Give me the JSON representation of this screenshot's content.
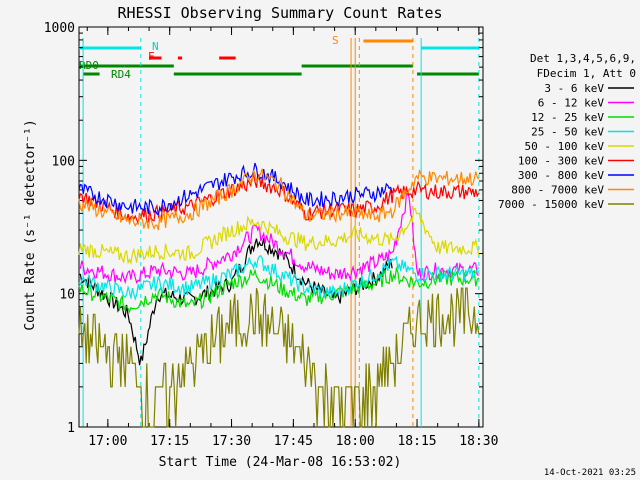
{
  "chart_data": {
    "type": "line",
    "title": "RHESSI Observing Summary Count Rates",
    "xlabel": "Start Time (24-Mar-08 16:53:02)",
    "ylabel": "Count Rate (s⁻¹ detector⁻¹)",
    "y_scale": "log",
    "ylim": [
      1,
      1000
    ],
    "xlim": [
      "16:53",
      "18:31"
    ],
    "x_ticks": [
      "17:00",
      "17:15",
      "17:30",
      "17:45",
      "18:00",
      "18:15",
      "18:30"
    ],
    "y_ticks": [
      "1",
      "10",
      "100",
      "1000"
    ],
    "legend_header": [
      "Det 1,3,4,5,6,9,",
      "FDecim 1, Att 0"
    ],
    "series": [
      {
        "name": "3 - 6 keV",
        "color": "#000000",
        "x": [
          "16:53",
          "17:05",
          "17:08",
          "17:12",
          "17:20",
          "17:30",
          "17:36",
          "17:42",
          "17:48",
          "17:55",
          "18:00",
          "18:05",
          "18:09"
        ],
        "y": [
          14,
          7,
          3,
          10,
          9,
          12,
          26,
          20,
          12,
          9,
          11,
          13,
          17
        ]
      },
      {
        "name": "6 - 12 keV",
        "color": "#ff00ff",
        "x": [
          "16:53",
          "17:05",
          "17:12",
          "17:20",
          "17:30",
          "17:36",
          "17:42",
          "17:48",
          "17:55",
          "18:00",
          "18:05",
          "18:09",
          "18:13",
          "18:15",
          "18:20",
          "18:30"
        ],
        "y": [
          16,
          13,
          15,
          14,
          20,
          30,
          22,
          16,
          14,
          15,
          17,
          20,
          60,
          14,
          15,
          15
        ]
      },
      {
        "name": "12 - 25 keV",
        "color": "#00dd00",
        "x": [
          "16:53",
          "17:05",
          "17:12",
          "17:20",
          "17:30",
          "17:36",
          "17:42",
          "17:48",
          "17:55",
          "18:00",
          "18:05",
          "18:09",
          "18:15",
          "18:20",
          "18:30"
        ],
        "y": [
          11,
          8,
          10,
          8,
          12,
          14,
          11,
          9,
          10,
          11,
          12,
          14,
          12,
          13,
          13
        ]
      },
      {
        "name": "25 - 50 keV",
        "color": "#00e5e5",
        "x": [
          "16:53",
          "17:05",
          "17:12",
          "17:20",
          "17:30",
          "17:36",
          "17:42",
          "17:48",
          "17:55",
          "18:00",
          "18:05",
          "18:09",
          "18:15",
          "18:20",
          "18:30"
        ],
        "y": [
          13,
          10,
          12,
          11,
          14,
          18,
          14,
          11,
          10,
          12,
          14,
          17,
          14,
          14,
          14
        ]
      },
      {
        "name": "50 - 100 keV",
        "color": "#d9d900",
        "x": [
          "16:53",
          "17:05",
          "17:12",
          "17:20",
          "17:30",
          "17:36",
          "17:42",
          "17:48",
          "17:55",
          "18:00",
          "18:05",
          "18:09",
          "18:15",
          "18:20",
          "18:30"
        ],
        "y": [
          22,
          19,
          21,
          20,
          30,
          35,
          28,
          24,
          25,
          28,
          26,
          25,
          40,
          22,
          22
        ]
      },
      {
        "name": "100 - 300 keV",
        "color": "#ff0000",
        "x": [
          "16:53",
          "17:05",
          "17:12",
          "17:20",
          "17:30",
          "17:36",
          "17:42",
          "17:48",
          "17:55",
          "18:00",
          "18:05",
          "18:09",
          "18:15",
          "18:20",
          "18:30"
        ],
        "y": [
          55,
          38,
          40,
          45,
          60,
          70,
          60,
          40,
          43,
          42,
          45,
          55,
          60,
          58,
          58
        ]
      },
      {
        "name": "300 - 800 keV",
        "color": "#0000ff",
        "x": [
          "16:53",
          "17:05",
          "17:12",
          "17:20",
          "17:30",
          "17:36",
          "17:42",
          "17:48",
          "17:55",
          "18:00",
          "18:05",
          "18:09"
        ],
        "y": [
          60,
          45,
          44,
          55,
          75,
          85,
          70,
          50,
          52,
          55,
          57,
          63
        ]
      },
      {
        "name": "800 - 7000 keV",
        "color": "#ff8800",
        "x": [
          "16:53",
          "17:05",
          "17:12",
          "17:20",
          "17:30",
          "17:36",
          "17:42",
          "17:48",
          "17:55",
          "18:00",
          "18:05",
          "18:09",
          "18:15",
          "18:20",
          "18:30"
        ],
        "y": [
          48,
          35,
          34,
          40,
          60,
          80,
          65,
          38,
          40,
          40,
          38,
          42,
          75,
          73,
          73
        ]
      },
      {
        "name": "7000 - 15000 keV",
        "color": "#808000",
        "x": [
          "16:53",
          "17:05",
          "17:12",
          "17:20",
          "17:30",
          "17:36",
          "17:42",
          "17:48",
          "17:55",
          "18:00",
          "18:05",
          "18:09",
          "18:15",
          "18:20",
          "18:30"
        ],
        "y": [
          5,
          3,
          1.5,
          3,
          6,
          7,
          5,
          3,
          1.5,
          1.5,
          2,
          3,
          6,
          7,
          7
        ]
      }
    ],
    "annotations": {
      "flag_labels": [
        "N",
        "F",
        "S",
        "RD0",
        "RD4"
      ],
      "timestamp": "14-Oct-2021 03:25"
    }
  }
}
